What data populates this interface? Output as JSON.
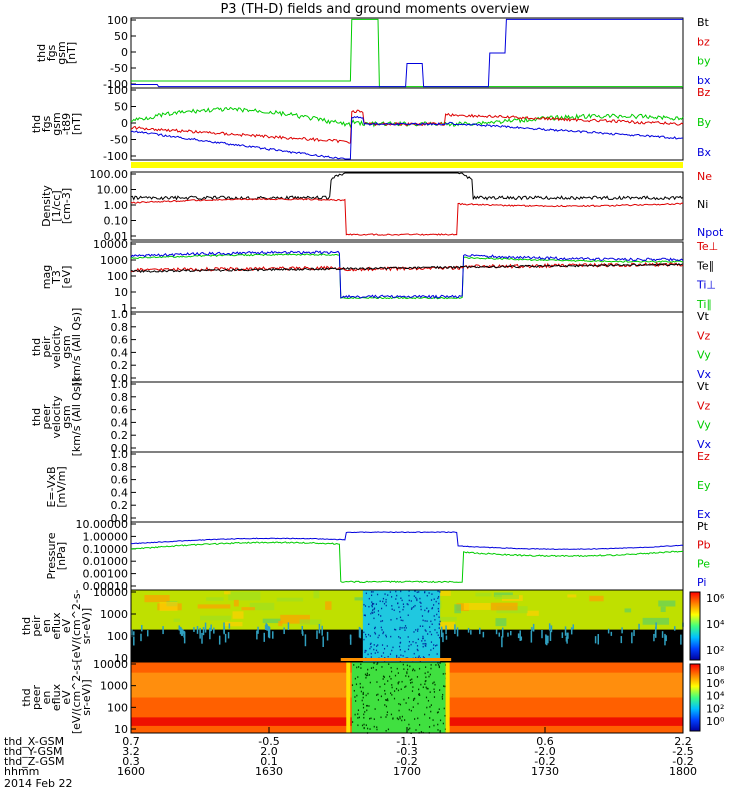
{
  "title": "P3 (TH-D) fields and ground moments overview",
  "colors": {
    "black": "#000000",
    "red": "#dd0000",
    "green": "#00cc00",
    "blue": "#0000dd",
    "yellow": "#ffff00"
  },
  "chart_data": {
    "type": "line",
    "time_range": [
      "1600",
      "1800"
    ],
    "panels": [
      {
        "id": "fgs",
        "ylabel": [
          "thd",
          "fgs",
          "gsm",
          "[nT]"
        ],
        "yticks": [
          "100",
          "50",
          "0",
          "-50",
          "-100"
        ],
        "ylim": [
          -100,
          100
        ],
        "legend": [
          {
            "name": "Bt",
            "color": "#000000"
          },
          {
            "name": "bz",
            "color": "#dd0000"
          },
          {
            "name": "by",
            "color": "#00cc00"
          },
          {
            "name": "bx",
            "color": "#0000dd"
          }
        ]
      },
      {
        "id": "fgs_t89",
        "ylabel": [
          "thd",
          "fgs",
          "gsm",
          "-t89",
          "[nT]"
        ],
        "yticks": [
          "100",
          "50",
          "0",
          "-50",
          "-100"
        ],
        "ylim": [
          -120,
          120
        ],
        "legend": [
          {
            "name": "Bz",
            "color": "#dd0000"
          },
          {
            "name": "By",
            "color": "#00cc00"
          },
          {
            "name": "Bx",
            "color": "#0000dd"
          }
        ]
      },
      {
        "id": "density",
        "ylabel": [
          "Density",
          "[1/cc]",
          "[cm-3]"
        ],
        "yticks": [
          "100.00",
          "10.00",
          "1.00",
          "0.10",
          "0.01"
        ],
        "scale": "log",
        "legend": [
          {
            "name": "Ne",
            "color": "#dd0000"
          },
          {
            "name": "Ni",
            "color": "#000000"
          },
          {
            "name": "Npot",
            "color": "#0000dd"
          }
        ]
      },
      {
        "id": "temperature",
        "ylabel": [
          "mag",
          "T3",
          "[eV]"
        ],
        "yticks": [
          "10000",
          "1000",
          "100",
          "10",
          "1"
        ],
        "scale": "log",
        "legend": [
          {
            "name": "Te⊥",
            "color": "#dd0000"
          },
          {
            "name": "Te∥",
            "color": "#000000"
          },
          {
            "name": "Ti⊥",
            "color": "#0000dd"
          },
          {
            "name": "Ti∥",
            "color": "#00cc00"
          }
        ]
      },
      {
        "id": "peir_velocity",
        "ylabel": [
          "thd",
          "peir",
          "velocity",
          "gsm",
          "[km/s (All Qs)]"
        ],
        "yticks": [
          "1.0",
          "0.8",
          "0.6",
          "0.4",
          "0.2",
          "0.0"
        ],
        "legend": [
          {
            "name": "Vt",
            "color": "#000000"
          },
          {
            "name": "Vz",
            "color": "#dd0000"
          },
          {
            "name": "Vy",
            "color": "#00cc00"
          },
          {
            "name": "Vx",
            "color": "#0000dd"
          }
        ]
      },
      {
        "id": "peer_velocity",
        "ylabel": [
          "thd",
          "peer",
          "velocity",
          "gsm",
          "[km/s (All Qs)]"
        ],
        "yticks": [
          "1.0",
          "0.8",
          "0.6",
          "0.4",
          "0.2",
          "0.0"
        ],
        "legend": [
          {
            "name": "Vt",
            "color": "#000000"
          },
          {
            "name": "Vz",
            "color": "#dd0000"
          },
          {
            "name": "Vy",
            "color": "#00cc00"
          },
          {
            "name": "Vx",
            "color": "#0000dd"
          }
        ]
      },
      {
        "id": "efield",
        "ylabel": [
          "E=-VxB",
          "[mV/m]"
        ],
        "yticks": [
          "1.0",
          "0.8",
          "0.6",
          "0.4",
          "0.2",
          "0.0"
        ],
        "legend": [
          {
            "name": "Ez",
            "color": "#dd0000"
          },
          {
            "name": "Ey",
            "color": "#00cc00"
          },
          {
            "name": "Ex",
            "color": "#0000dd"
          }
        ]
      },
      {
        "id": "pressure",
        "ylabel": [
          "Pressure",
          "[nPa]"
        ],
        "yticks": [
          "10.00000",
          "1.00000",
          "0.10000",
          "0.01000",
          "0.00100",
          "0.00010"
        ],
        "scale": "log",
        "legend": [
          {
            "name": "Pt",
            "color": "#000000"
          },
          {
            "name": "Pb",
            "color": "#dd0000"
          },
          {
            "name": "Pe",
            "color": "#00cc00"
          },
          {
            "name": "Pi",
            "color": "#0000dd"
          }
        ]
      },
      {
        "id": "peir_spec",
        "type": "heatmap",
        "ylabel": [
          "thd",
          "peir",
          "en",
          "eflux",
          "eV",
          "[eV/(cm^2-s-",
          "sr-eV)]"
        ],
        "yticks": [
          "10000",
          "1000",
          "100",
          "10"
        ],
        "colorbar": [
          "10⁶",
          "10⁴",
          "10²"
        ]
      },
      {
        "id": "peer_spec",
        "type": "heatmap",
        "ylabel": [
          "thd",
          "peer",
          "en",
          "eflux",
          "eV",
          "[eV/(cm^2-s-",
          "sr-eV)]"
        ],
        "yticks": [
          "10000",
          "1000",
          "100",
          "10"
        ],
        "colorbar": [
          "10⁸",
          "10⁶",
          "10⁴",
          "10²",
          "10⁰"
        ]
      }
    ],
    "ephemeris": {
      "labels": [
        "thd_X-GSM",
        "thd_Y-GSM",
        "thd_Z-GSM",
        "hhmm"
      ],
      "columns": [
        [
          "0.7",
          "3.2",
          "0.3",
          "1600"
        ],
        [
          "-0.5",
          "2.0",
          "0.1",
          "1630"
        ],
        [
          "-1.1",
          "-0.3",
          "-0.2",
          "1700"
        ],
        [
          "0.6",
          "-2.0",
          "-0.2",
          "1730"
        ],
        [
          "2.2",
          "-2.5",
          "-0.2",
          "1800"
        ]
      ]
    },
    "date": "2014 Feb 22"
  }
}
